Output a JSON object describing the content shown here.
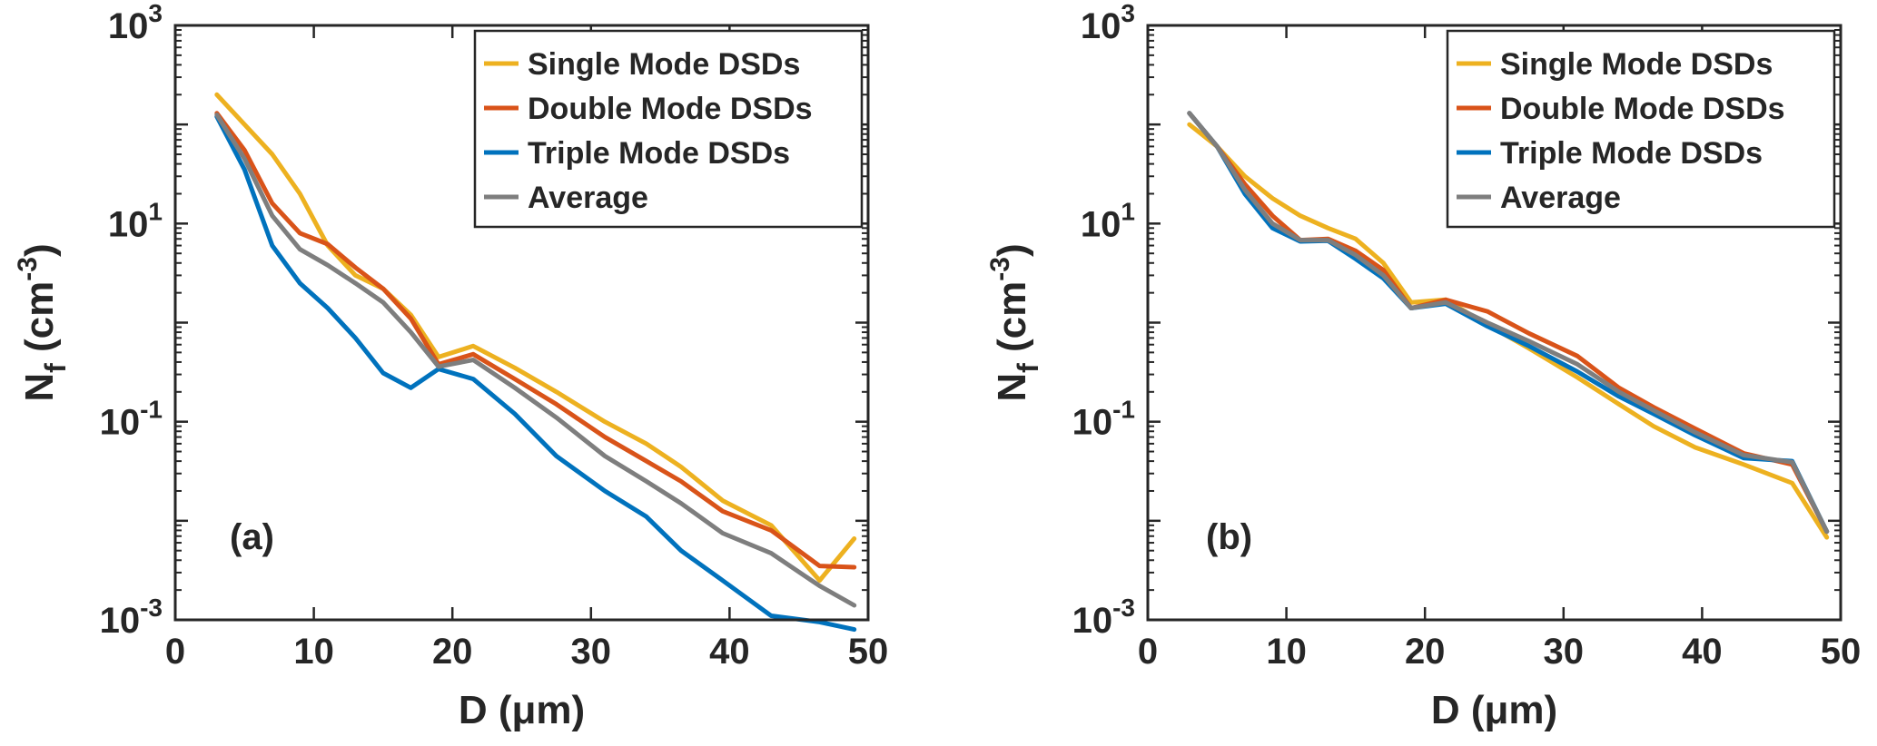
{
  "colors": {
    "single": "#EDB120",
    "double": "#D95319",
    "triple": "#0072BD",
    "average": "#7E7E7E",
    "axis": "#262626"
  },
  "chart_data": [
    {
      "type": "line",
      "panel_label": "(a)",
      "xlabel": "D (μm)",
      "ylabel_main": "N",
      "ylabel_sub": "f",
      "ylabel_unit": "(cm",
      "ylabel_exp": "-3",
      "ylabel_close": ")",
      "xlim": [
        0,
        50
      ],
      "ylim": [
        0.001,
        1000
      ],
      "yscale": "log",
      "xticks": [
        0,
        10,
        20,
        30,
        40,
        50
      ],
      "xtick_labels": [
        "0",
        "10",
        "20",
        "30",
        "40",
        "50"
      ],
      "yticks": [
        {
          "value": 1000,
          "base": "10",
          "exp": "3"
        },
        {
          "value": 10,
          "base": "10",
          "exp": "1"
        },
        {
          "value": 0.1,
          "base": "10",
          "exp": "-1"
        },
        {
          "value": 0.001,
          "base": "10",
          "exp": "-3"
        }
      ],
      "legend_position": "top-right",
      "x": [
        3,
        5,
        7,
        9,
        11,
        13,
        15,
        17,
        19,
        21.5,
        24.5,
        27.5,
        31,
        34,
        36.5,
        39.5,
        43,
        46.5,
        49
      ],
      "series": [
        {
          "name": "Single Mode DSDs",
          "color_key": "single",
          "values": [
            200,
            100,
            50,
            20,
            6,
            3,
            2.2,
            1.2,
            0.45,
            0.58,
            0.35,
            0.2,
            0.1,
            0.06,
            0.035,
            0.016,
            0.009,
            0.0025,
            0.0066
          ]
        },
        {
          "name": "Double Mode DSDs",
          "color_key": "double",
          "values": [
            130,
            55,
            16,
            8,
            6.2,
            3.6,
            2.2,
            1.1,
            0.38,
            0.48,
            0.27,
            0.15,
            0.07,
            0.04,
            0.025,
            0.0125,
            0.008,
            0.0035,
            0.0034
          ]
        },
        {
          "name": "Triple Mode DSDs",
          "color_key": "triple",
          "values": [
            120,
            35,
            6,
            2.5,
            1.4,
            0.7,
            0.31,
            0.22,
            0.34,
            0.27,
            0.12,
            0.045,
            0.02,
            0.011,
            0.005,
            0.0025,
            0.0011,
            0.00095,
            0.0008
          ]
        },
        {
          "name": "Average",
          "color_key": "average",
          "values": [
            125,
            45,
            12,
            5.5,
            3.8,
            2.5,
            1.6,
            0.8,
            0.36,
            0.42,
            0.22,
            0.11,
            0.045,
            0.025,
            0.015,
            0.0075,
            0.0047,
            0.0022,
            0.0014
          ]
        }
      ]
    },
    {
      "type": "line",
      "panel_label": "(b)",
      "xlabel": "D (μm)",
      "ylabel_main": "N",
      "ylabel_sub": "f",
      "ylabel_unit": "(cm",
      "ylabel_exp": "-3",
      "ylabel_close": ")",
      "xlim": [
        0,
        50
      ],
      "ylim": [
        0.001,
        1000
      ],
      "yscale": "log",
      "xticks": [
        0,
        10,
        20,
        30,
        40,
        50
      ],
      "xtick_labels": [
        "0",
        "10",
        "20",
        "30",
        "40",
        "50"
      ],
      "yticks": [
        {
          "value": 1000,
          "base": "10",
          "exp": "3"
        },
        {
          "value": 10,
          "base": "10",
          "exp": "1"
        },
        {
          "value": 0.1,
          "base": "10",
          "exp": "-1"
        },
        {
          "value": 0.001,
          "base": "10",
          "exp": "-3"
        }
      ],
      "legend_position": "top-right",
      "x": [
        3,
        5,
        7,
        9,
        11,
        13,
        15,
        17,
        19,
        21.5,
        24.5,
        27.5,
        31,
        34,
        36.5,
        39.5,
        43,
        46.5,
        49
      ],
      "series": [
        {
          "name": "Single Mode DSDs",
          "color_key": "single",
          "values": [
            100,
            60,
            30,
            18,
            12,
            9,
            7,
            4,
            1.6,
            1.7,
            0.95,
            0.55,
            0.28,
            0.15,
            0.09,
            0.055,
            0.037,
            0.024,
            0.0068
          ]
        },
        {
          "name": "Double Mode DSDs",
          "color_key": "double",
          "values": [
            130,
            60,
            25,
            12,
            6.8,
            7,
            5.3,
            3.4,
            1.4,
            1.7,
            1.3,
            0.78,
            0.46,
            0.22,
            0.14,
            0.085,
            0.048,
            0.037,
            0.0078
          ]
        },
        {
          "name": "Triple Mode DSDs",
          "color_key": "triple",
          "values": [
            130,
            60,
            20,
            9,
            6.6,
            6.7,
            4.4,
            2.8,
            1.4,
            1.55,
            0.92,
            0.58,
            0.32,
            0.18,
            0.12,
            0.073,
            0.043,
            0.04,
            0.0078
          ]
        },
        {
          "name": "Average",
          "color_key": "average",
          "values": [
            130,
            60,
            22,
            10,
            6.8,
            6.8,
            4.8,
            3.0,
            1.4,
            1.6,
            1.0,
            0.65,
            0.38,
            0.2,
            0.13,
            0.078,
            0.046,
            0.039,
            0.0078
          ]
        }
      ]
    }
  ]
}
